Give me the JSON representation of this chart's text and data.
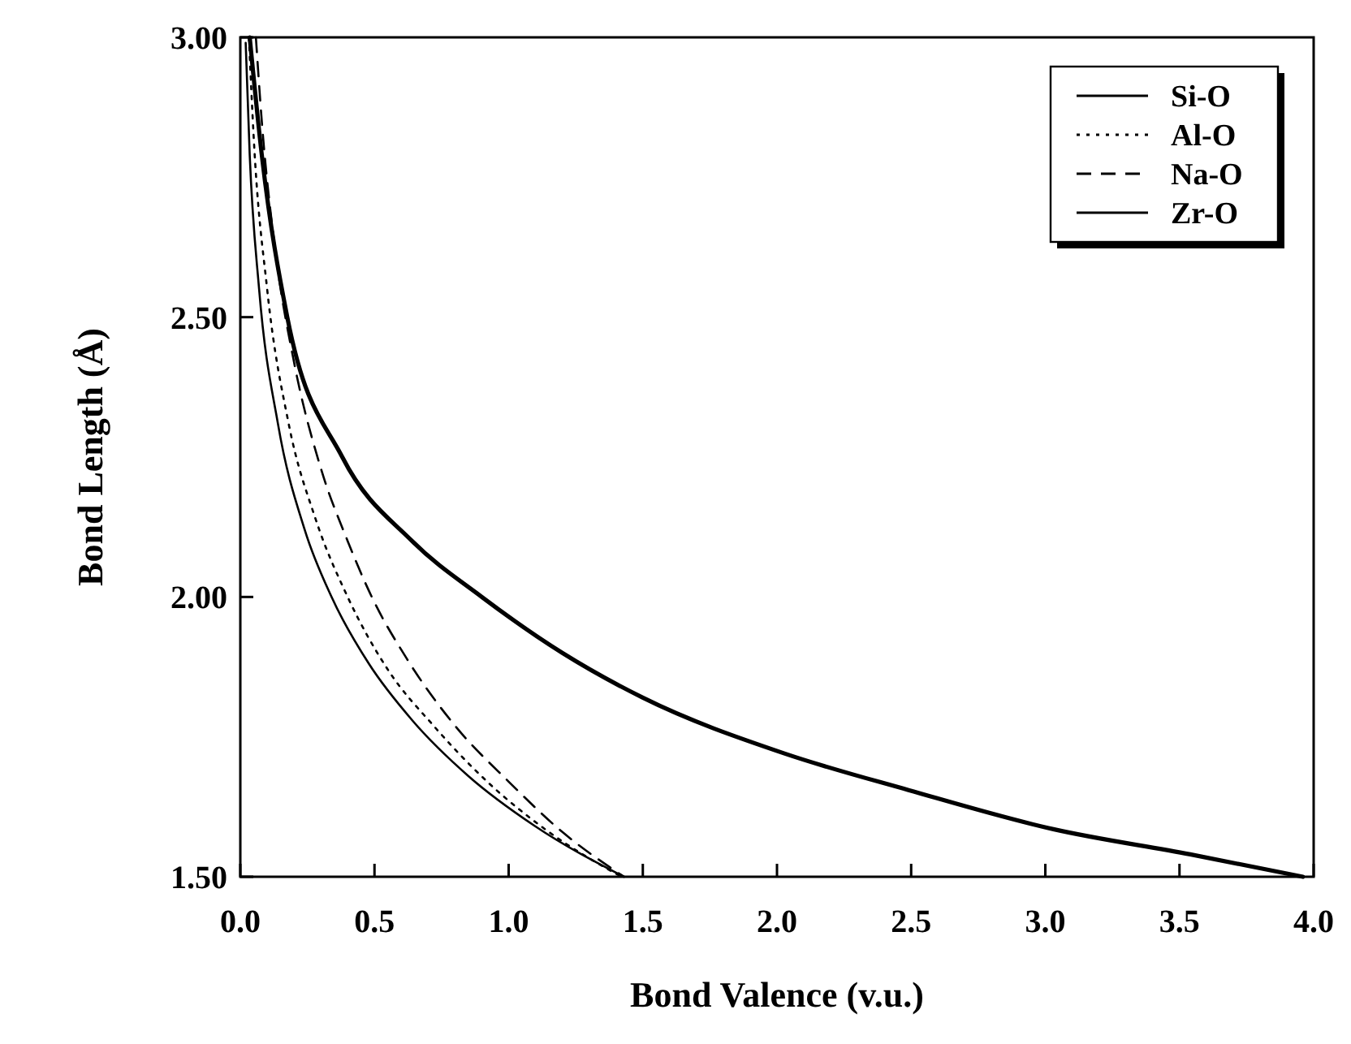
{
  "chart_data": {
    "type": "line",
    "xlabel": "Bond Valence (v.u.)",
    "ylabel": "Bond Length (Å)",
    "xlim": [
      0,
      4
    ],
    "ylim": [
      1.5,
      3
    ],
    "xticks": [
      {
        "value": 0,
        "label": "0.0"
      },
      {
        "value": 0.5,
        "label": "0.5"
      },
      {
        "value": 1,
        "label": "1.0"
      },
      {
        "value": 1.5,
        "label": "1.5"
      },
      {
        "value": 2,
        "label": "2.0"
      },
      {
        "value": 2.5,
        "label": "2.5"
      },
      {
        "value": 3,
        "label": "3.0"
      },
      {
        "value": 3.5,
        "label": "3.5"
      },
      {
        "value": 4,
        "label": "4.0"
      }
    ],
    "yticks": [
      {
        "value": 1.5,
        "label": "1.50"
      },
      {
        "value": 2,
        "label": "2.00"
      },
      {
        "value": 2.5,
        "label": "2.50"
      },
      {
        "value": 3,
        "label": "3.00"
      }
    ],
    "grid": false,
    "legend": "top right",
    "series": [
      {
        "name": "Si-O",
        "color": "#000000",
        "line_style": "solid",
        "x": [
          0.02,
          0.035,
          0.07,
          0.14,
          0.24,
          0.34,
          0.48,
          0.64,
          0.85,
          1.1,
          1.43
        ],
        "values": [
          2.99,
          2.79,
          2.55,
          2.31,
          2.12,
          2.0,
          1.88,
          1.78,
          1.68,
          1.59,
          1.5
        ]
      },
      {
        "name": "Al-O",
        "color": "#000000",
        "line_style": "dotted",
        "x": [
          0.032,
          0.05,
          0.1,
          0.18,
          0.28,
          0.4,
          0.55,
          0.72,
          0.92,
          1.15,
          1.42
        ],
        "values": [
          3.0,
          2.82,
          2.55,
          2.31,
          2.14,
          2.0,
          1.87,
          1.77,
          1.67,
          1.58,
          1.5
        ]
      },
      {
        "name": "Na-O",
        "color": "#000000",
        "line_style": "dashed",
        "x": [
          0.058,
          0.08,
          0.13,
          0.2,
          0.3,
          0.4,
          0.49,
          0.62,
          0.8,
          1.0,
          1.2,
          1.43
        ],
        "values": [
          3.0,
          2.85,
          2.62,
          2.42,
          2.23,
          2.1,
          2.0,
          1.89,
          1.77,
          1.67,
          1.58,
          1.5
        ]
      },
      {
        "name": "Zr-O",
        "color": "#000000",
        "line_style": "solid",
        "x": [
          0.035,
          0.08,
          0.175,
          0.38,
          0.64,
          0.9,
          1.2,
          1.5,
          2.03,
          2.49,
          3.03,
          3.54,
          3.96
        ],
        "values": [
          3.0,
          2.79,
          2.5,
          2.25,
          2.1,
          2.0,
          1.9,
          1.82,
          1.72,
          1.655,
          1.585,
          1.54,
          1.5
        ]
      }
    ]
  }
}
